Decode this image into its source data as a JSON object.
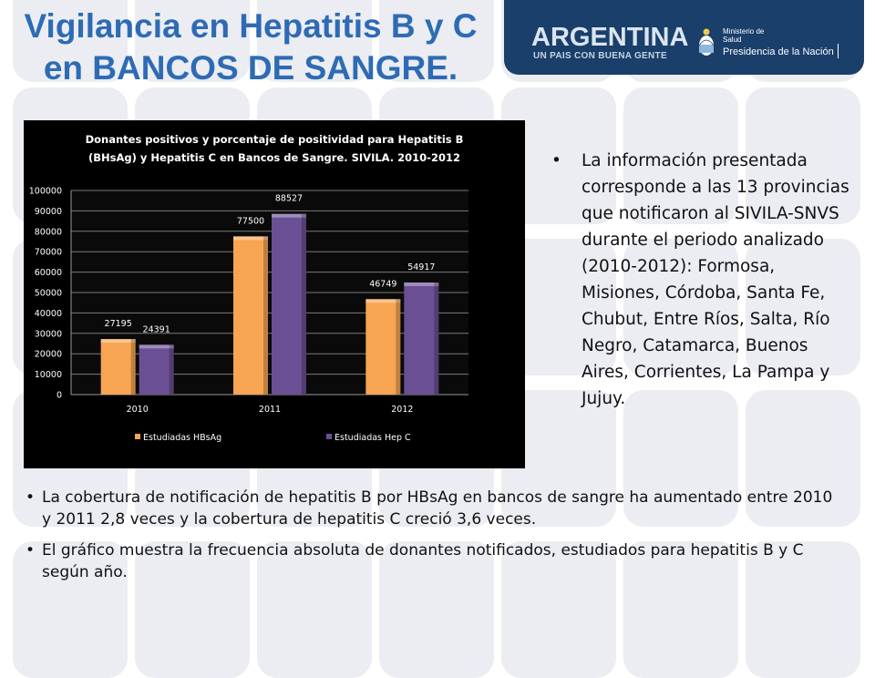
{
  "header": {
    "title_line1": "Vigilancia en Hepatitis B y C",
    "title_line2": "en BANCOS DE SANGRE."
  },
  "banner": {
    "logo_word": "ARGENTINA",
    "logo_tagline": "UN PAIS CON BUENA GENTE",
    "ministry_line1": "Ministerio de",
    "ministry_line2": "Salud",
    "ministry_line3": "Presidencia de la Nación",
    "colors": {
      "background": "#193f6a"
    }
  },
  "chart_data": {
    "type": "bar",
    "title_line1": "Donantes positivos y porcentaje de positividad para Hepatitis B",
    "title_line2": "(BHsAg) y Hepatitis C en Bancos de Sangre. SIVILA. 2010-2012",
    "categories": [
      "2010",
      "2011",
      "2012"
    ],
    "series": [
      {
        "name": "Estudiadas HBsAg",
        "values": [
          27195,
          77500,
          46749
        ],
        "color": "#f7a552"
      },
      {
        "name": "Estudiadas Hep C",
        "values": [
          24391,
          88527,
          54917
        ],
        "color": "#6b4f94"
      }
    ],
    "ylim": [
      0,
      100000
    ],
    "yticks": [
      "0",
      "10000",
      "20000",
      "30000",
      "40000",
      "50000",
      "60000",
      "70000",
      "80000",
      "90000",
      "100000"
    ],
    "grid": true,
    "legend_position": "bottom",
    "background": "#000000"
  },
  "right_bullets": [
    "La información presentada corresponde a las 13 provincias que notificaron al SIVILA-SNVS durante el periodo analizado (2010-2012): Formosa, Misiones, Córdoba, Santa Fe, Chubut, Entre Ríos, Salta, Río Negro, Catamarca, Buenos Aires, Corrientes, La Pampa y Jujuy."
  ],
  "bottom_bullets": [
    "La cobertura de notificación de hepatitis B por HBsAg en bancos de sangre ha aumentado entre 2010 y 2011 2,8 veces y la cobertura de hepatitis C creció 3,6 veces.",
    "El gráfico muestra la frecuencia absoluta de donantes notificados, estudiados para hepatitis B y C según año."
  ],
  "bullet_symbol": "•"
}
